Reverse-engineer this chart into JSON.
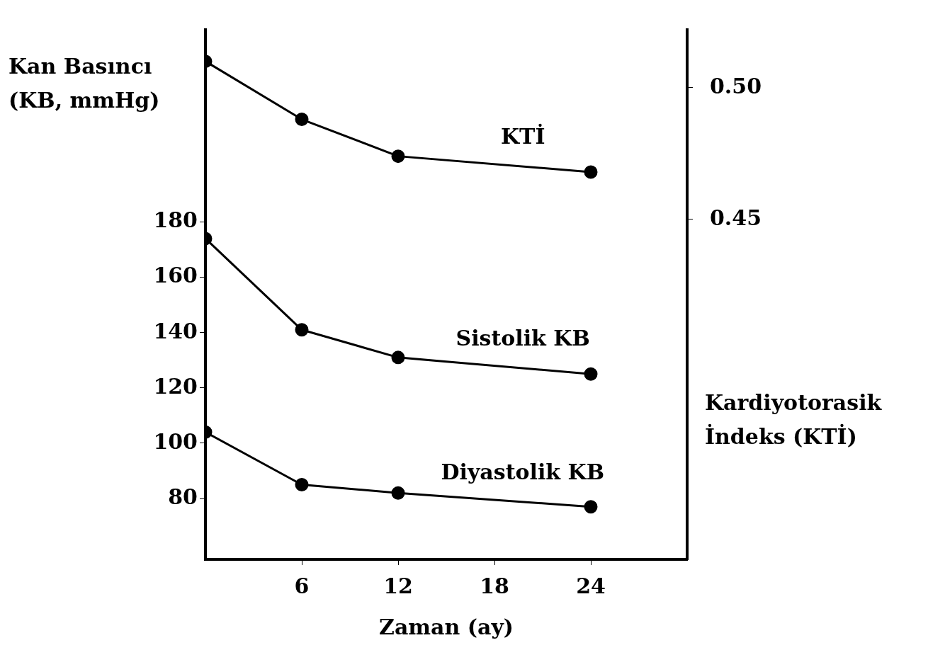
{
  "chart_data": {
    "type": "line",
    "xlabel": "Zaman (ay)",
    "ylabel": "Kan Basıncı (KB, mmHg)",
    "y2label": "Kardiyotorasik İndeks (KTİ)",
    "x": [
      0,
      6,
      12,
      24
    ],
    "series": [
      {
        "name": "KTİ",
        "color": "#000000",
        "axis": "y2",
        "values": [
          0.51,
          0.488,
          0.474,
          0.468
        ]
      },
      {
        "name": "Sistolik KB",
        "color": "#000000",
        "values": [
          174,
          141,
          131,
          125
        ]
      },
      {
        "name": "Diyastolik KB",
        "color": "#000000",
        "values": [
          104,
          85,
          82,
          77
        ]
      }
    ],
    "xlim": [
      0,
      30
    ],
    "xticks": [
      6,
      12,
      18,
      24
    ],
    "ylim": [
      58,
      249.5
    ],
    "yticks": [
      80,
      100,
      120,
      140,
      160,
      180
    ],
    "y2lim": [
      0.321,
      0.522
    ],
    "y2ticks": [
      {
        "value": 0.45,
        "label": "0.45"
      },
      {
        "value": 0.5,
        "label": "0.50"
      }
    ],
    "marker": "circle",
    "line_style": "solid",
    "grid": false,
    "legend": false
  }
}
